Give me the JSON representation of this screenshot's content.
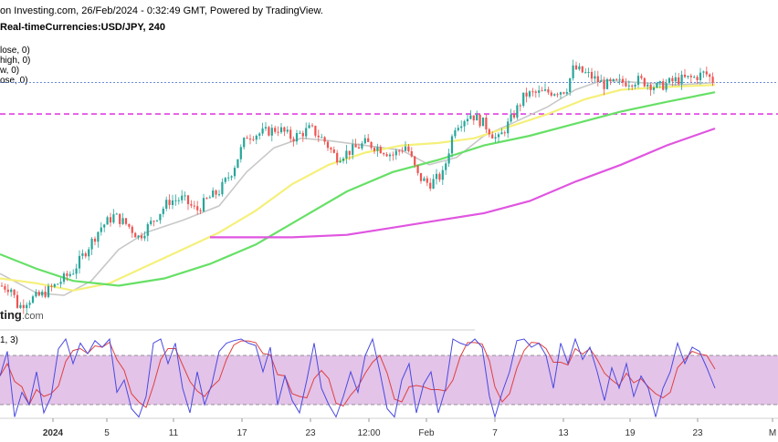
{
  "header": {
    "source_line": "on Investing.com, 26/Feb/2024 - 0:32:49 GMT, Powered by TradingView.",
    "symbol_line": "Real-timeCurrencies:USD/JPY, 240"
  },
  "legend": [
    "lose, 0)",
    "high, 0)",
    "w, 0)",
    "ose, 0)"
  ],
  "watermark": {
    "brand": "ting",
    "domain": ".com"
  },
  "stoch_label": "1, 3)",
  "colors": {
    "bull": "#26a69a",
    "bear": "#ef5350",
    "ma_fast": "#c8c8c8",
    "ma_50": "#f5f07a",
    "ma_100": "#66e066",
    "ma_200": "#e055e0",
    "hline": "#e040e0",
    "price_line": "#5b7bd0",
    "stoch_fill": "#e3c3e8",
    "stoch_k": "#4a4ae0",
    "stoch_d": "#e04040"
  },
  "chart_data": {
    "type": "candlestick",
    "symbol": "USD/JPY",
    "timeframe": "240",
    "x_tick_labels": [
      "2024",
      "5",
      "11",
      "17",
      "23",
      "12:00",
      "Feb",
      "7",
      "13",
      "19",
      "23",
      "M"
    ],
    "y_range": [
      140.8,
      150.9
    ],
    "levels": {
      "resistance": 148.9,
      "last_price": 150.2
    },
    "anchors": [
      {
        "x": 0,
        "p": 141.8
      },
      {
        "x": 12,
        "p": 141.7
      },
      {
        "x": 20,
        "p": 140.9
      },
      {
        "x": 30,
        "p": 141.2
      },
      {
        "x": 45,
        "p": 141.4
      },
      {
        "x": 60,
        "p": 141.8
      },
      {
        "x": 80,
        "p": 142.4
      },
      {
        "x": 95,
        "p": 143.3
      },
      {
        "x": 110,
        "p": 144.2
      },
      {
        "x": 125,
        "p": 144.7
      },
      {
        "x": 140,
        "p": 144.3
      },
      {
        "x": 152,
        "p": 143.8
      },
      {
        "x": 170,
        "p": 144.6
      },
      {
        "x": 185,
        "p": 145.3
      },
      {
        "x": 200,
        "p": 145.4
      },
      {
        "x": 215,
        "p": 144.9
      },
      {
        "x": 228,
        "p": 145.4
      },
      {
        "x": 240,
        "p": 145.7
      },
      {
        "x": 255,
        "p": 146.6
      },
      {
        "x": 270,
        "p": 148.0
      },
      {
        "x": 285,
        "p": 148.1
      },
      {
        "x": 305,
        "p": 148.3
      },
      {
        "x": 320,
        "p": 147.9
      },
      {
        "x": 340,
        "p": 148.3
      },
      {
        "x": 355,
        "p": 147.8
      },
      {
        "x": 368,
        "p": 147.1
      },
      {
        "x": 385,
        "p": 147.4
      },
      {
        "x": 400,
        "p": 147.7
      },
      {
        "x": 415,
        "p": 147.5
      },
      {
        "x": 430,
        "p": 147.2
      },
      {
        "x": 445,
        "p": 147.6
      },
      {
        "x": 458,
        "p": 146.3
      },
      {
        "x": 470,
        "p": 146.0
      },
      {
        "x": 485,
        "p": 146.4
      },
      {
        "x": 498,
        "p": 148.4
      },
      {
        "x": 515,
        "p": 148.9
      },
      {
        "x": 530,
        "p": 148.5
      },
      {
        "x": 545,
        "p": 147.8
      },
      {
        "x": 560,
        "p": 148.7
      },
      {
        "x": 575,
        "p": 149.7
      },
      {
        "x": 600,
        "p": 149.8
      },
      {
        "x": 620,
        "p": 149.9
      },
      {
        "x": 628,
        "p": 150.8
      },
      {
        "x": 645,
        "p": 150.5
      },
      {
        "x": 662,
        "p": 150.1
      },
      {
        "x": 680,
        "p": 150.2
      },
      {
        "x": 700,
        "p": 150.3
      },
      {
        "x": 720,
        "p": 150.0
      },
      {
        "x": 740,
        "p": 150.3
      },
      {
        "x": 760,
        "p": 150.4
      },
      {
        "x": 772,
        "p": 150.6
      },
      {
        "x": 783,
        "p": 150.2
      }
    ],
    "moving_averages": [
      {
        "id": "fast",
        "color": "#c8c8c8",
        "points": [
          {
            "x": 0,
            "p": 142.3
          },
          {
            "x": 40,
            "p": 141.5
          },
          {
            "x": 70,
            "p": 141.4
          },
          {
            "x": 100,
            "p": 142.0
          },
          {
            "x": 130,
            "p": 143.3
          },
          {
            "x": 160,
            "p": 144.0
          },
          {
            "x": 200,
            "p": 144.5
          },
          {
            "x": 240,
            "p": 145.1
          },
          {
            "x": 270,
            "p": 146.5
          },
          {
            "x": 300,
            "p": 147.5
          },
          {
            "x": 330,
            "p": 147.9
          },
          {
            "x": 360,
            "p": 147.8
          },
          {
            "x": 400,
            "p": 147.6
          },
          {
            "x": 440,
            "p": 147.4
          },
          {
            "x": 470,
            "p": 146.8
          },
          {
            "x": 500,
            "p": 147.1
          },
          {
            "x": 530,
            "p": 148.0
          },
          {
            "x": 560,
            "p": 148.5
          },
          {
            "x": 600,
            "p": 149.2
          },
          {
            "x": 630,
            "p": 149.9
          },
          {
            "x": 660,
            "p": 150.3
          },
          {
            "x": 700,
            "p": 150.2
          },
          {
            "x": 740,
            "p": 150.1
          },
          {
            "x": 783,
            "p": 150.2
          }
        ]
      },
      {
        "id": "ma50",
        "color": "#f5f07a",
        "points": [
          {
            "x": 0,
            "p": 142.1
          },
          {
            "x": 40,
            "p": 141.9
          },
          {
            "x": 80,
            "p": 141.6
          },
          {
            "x": 120,
            "p": 141.9
          },
          {
            "x": 160,
            "p": 142.6
          },
          {
            "x": 200,
            "p": 143.3
          },
          {
            "x": 240,
            "p": 144.0
          },
          {
            "x": 280,
            "p": 144.9
          },
          {
            "x": 320,
            "p": 146.0
          },
          {
            "x": 360,
            "p": 146.8
          },
          {
            "x": 400,
            "p": 147.3
          },
          {
            "x": 440,
            "p": 147.6
          },
          {
            "x": 480,
            "p": 147.7
          },
          {
            "x": 520,
            "p": 147.9
          },
          {
            "x": 560,
            "p": 148.4
          },
          {
            "x": 600,
            "p": 148.9
          },
          {
            "x": 640,
            "p": 149.5
          },
          {
            "x": 680,
            "p": 149.9
          },
          {
            "x": 720,
            "p": 150.0
          },
          {
            "x": 783,
            "p": 150.1
          }
        ]
      },
      {
        "id": "ma100",
        "color": "#66e066",
        "points": [
          {
            "x": 0,
            "p": 143.1
          },
          {
            "x": 40,
            "p": 142.5
          },
          {
            "x": 80,
            "p": 142.0
          },
          {
            "x": 130,
            "p": 141.8
          },
          {
            "x": 180,
            "p": 142.1
          },
          {
            "x": 230,
            "p": 142.7
          },
          {
            "x": 280,
            "p": 143.5
          },
          {
            "x": 330,
            "p": 144.6
          },
          {
            "x": 380,
            "p": 145.7
          },
          {
            "x": 430,
            "p": 146.5
          },
          {
            "x": 480,
            "p": 147.0
          },
          {
            "x": 530,
            "p": 147.6
          },
          {
            "x": 580,
            "p": 148.0
          },
          {
            "x": 630,
            "p": 148.5
          },
          {
            "x": 680,
            "p": 149.0
          },
          {
            "x": 730,
            "p": 149.4
          },
          {
            "x": 783,
            "p": 149.8
          }
        ]
      },
      {
        "id": "ma200",
        "color": "#e055e0",
        "points": [
          {
            "x": 230,
            "p": 143.8
          },
          {
            "x": 260,
            "p": 143.8
          },
          {
            "x": 320,
            "p": 143.8
          },
          {
            "x": 380,
            "p": 143.9
          },
          {
            "x": 430,
            "p": 144.2
          },
          {
            "x": 480,
            "p": 144.5
          },
          {
            "x": 530,
            "p": 144.8
          },
          {
            "x": 580,
            "p": 145.3
          },
          {
            "x": 630,
            "p": 146.1
          },
          {
            "x": 680,
            "p": 146.8
          },
          {
            "x": 730,
            "p": 147.6
          },
          {
            "x": 783,
            "p": 148.3
          }
        ]
      }
    ],
    "stochastic": {
      "range": [
        0,
        100
      ],
      "bands": [
        80,
        20
      ],
      "k": [
        {
          "x": 0,
          "v": 55
        },
        {
          "x": 8,
          "v": 85
        },
        {
          "x": 16,
          "v": 5
        },
        {
          "x": 24,
          "v": 35
        },
        {
          "x": 32,
          "v": 20
        },
        {
          "x": 40,
          "v": 60
        },
        {
          "x": 48,
          "v": 10
        },
        {
          "x": 56,
          "v": 30
        },
        {
          "x": 64,
          "v": 88
        },
        {
          "x": 72,
          "v": 100
        },
        {
          "x": 80,
          "v": 70
        },
        {
          "x": 88,
          "v": 95
        },
        {
          "x": 96,
          "v": 82
        },
        {
          "x": 104,
          "v": 98
        },
        {
          "x": 112,
          "v": 90
        },
        {
          "x": 120,
          "v": 100
        },
        {
          "x": 128,
          "v": 35
        },
        {
          "x": 136,
          "v": 50
        },
        {
          "x": 144,
          "v": 15
        },
        {
          "x": 152,
          "v": 5
        },
        {
          "x": 160,
          "v": 30
        },
        {
          "x": 168,
          "v": 95
        },
        {
          "x": 176,
          "v": 100
        },
        {
          "x": 184,
          "v": 70
        },
        {
          "x": 192,
          "v": 95
        },
        {
          "x": 200,
          "v": 40
        },
        {
          "x": 208,
          "v": 10
        },
        {
          "x": 216,
          "v": 60
        },
        {
          "x": 224,
          "v": 20
        },
        {
          "x": 232,
          "v": 45
        },
        {
          "x": 240,
          "v": 85
        },
        {
          "x": 248,
          "v": 95
        },
        {
          "x": 256,
          "v": 98
        },
        {
          "x": 264,
          "v": 100
        },
        {
          "x": 272,
          "v": 95
        },
        {
          "x": 280,
          "v": 92
        },
        {
          "x": 288,
          "v": 60
        },
        {
          "x": 296,
          "v": 90
        },
        {
          "x": 304,
          "v": 20
        },
        {
          "x": 312,
          "v": 55
        },
        {
          "x": 320,
          "v": 25
        },
        {
          "x": 328,
          "v": 10
        },
        {
          "x": 336,
          "v": 50
        },
        {
          "x": 344,
          "v": 95
        },
        {
          "x": 352,
          "v": 40
        },
        {
          "x": 360,
          "v": 20
        },
        {
          "x": 368,
          "v": 5
        },
        {
          "x": 376,
          "v": 30
        },
        {
          "x": 384,
          "v": 60
        },
        {
          "x": 392,
          "v": 35
        },
        {
          "x": 400,
          "v": 80
        },
        {
          "x": 408,
          "v": 100
        },
        {
          "x": 416,
          "v": 60
        },
        {
          "x": 424,
          "v": 15
        },
        {
          "x": 432,
          "v": 5
        },
        {
          "x": 440,
          "v": 50
        },
        {
          "x": 448,
          "v": 70
        },
        {
          "x": 456,
          "v": 10
        },
        {
          "x": 464,
          "v": 45
        },
        {
          "x": 472,
          "v": 60
        },
        {
          "x": 480,
          "v": 10
        },
        {
          "x": 488,
          "v": 40
        },
        {
          "x": 496,
          "v": 100
        },
        {
          "x": 504,
          "v": 95
        },
        {
          "x": 512,
          "v": 92
        },
        {
          "x": 520,
          "v": 100
        },
        {
          "x": 528,
          "v": 90
        },
        {
          "x": 536,
          "v": 30
        },
        {
          "x": 542,
          "v": 5
        },
        {
          "x": 550,
          "v": 35
        },
        {
          "x": 558,
          "v": 60
        },
        {
          "x": 566,
          "v": 98
        },
        {
          "x": 574,
          "v": 100
        },
        {
          "x": 582,
          "v": 90
        },
        {
          "x": 590,
          "v": 95
        },
        {
          "x": 598,
          "v": 80
        },
        {
          "x": 606,
          "v": 40
        },
        {
          "x": 614,
          "v": 95
        },
        {
          "x": 622,
          "v": 70
        },
        {
          "x": 630,
          "v": 100
        },
        {
          "x": 638,
          "v": 75
        },
        {
          "x": 646,
          "v": 90
        },
        {
          "x": 654,
          "v": 60
        },
        {
          "x": 662,
          "v": 25
        },
        {
          "x": 670,
          "v": 65
        },
        {
          "x": 678,
          "v": 40
        },
        {
          "x": 686,
          "v": 70
        },
        {
          "x": 694,
          "v": 30
        },
        {
          "x": 702,
          "v": 55
        },
        {
          "x": 710,
          "v": 40
        },
        {
          "x": 718,
          "v": 5
        },
        {
          "x": 726,
          "v": 40
        },
        {
          "x": 734,
          "v": 60
        },
        {
          "x": 742,
          "v": 95
        },
        {
          "x": 750,
          "v": 70
        },
        {
          "x": 758,
          "v": 90
        },
        {
          "x": 766,
          "v": 85
        },
        {
          "x": 774,
          "v": 65
        },
        {
          "x": 783,
          "v": 40
        }
      ]
    }
  }
}
